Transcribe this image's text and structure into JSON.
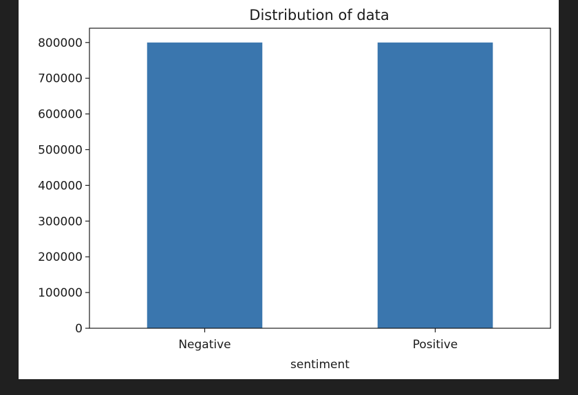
{
  "chart_data": {
    "type": "bar",
    "title": "Distribution of data",
    "xlabel": "sentiment",
    "ylabel": "",
    "categories": [
      "Negative",
      "Positive"
    ],
    "values": [
      800000,
      800000
    ],
    "ylim": [
      0,
      840000
    ],
    "yticks": [
      0,
      100000,
      200000,
      300000,
      400000,
      500000,
      600000,
      700000,
      800000
    ],
    "ytick_labels": [
      "0",
      "100000",
      "200000",
      "300000",
      "400000",
      "500000",
      "600000",
      "700000",
      "800000"
    ],
    "bar_color": "#3a76ae",
    "grid": false,
    "legend": "none"
  }
}
